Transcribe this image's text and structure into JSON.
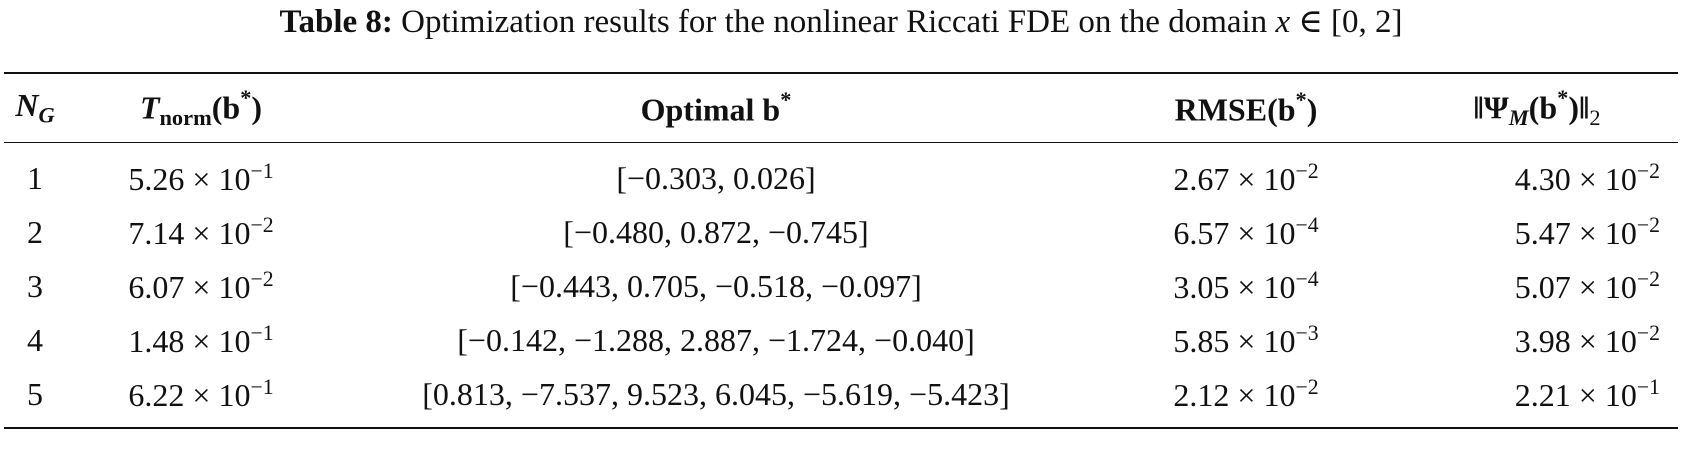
{
  "caption": {
    "label": "Table 8:",
    "text": [
      {
        "text": " Optimization results for the nonlinear Riccati FDE on the domain "
      },
      {
        "text": "x",
        "style": "i"
      },
      {
        "text": " ∈ [0, 2]"
      }
    ]
  },
  "table": {
    "header": [
      [
        {
          "text": "N",
          "style": "bi"
        },
        {
          "text": "G",
          "style": "sub-bi"
        }
      ],
      [
        {
          "text": "T",
          "style": "bi"
        },
        {
          "text": "norm",
          "style": "sub-b"
        },
        {
          "text": "(b",
          "style": "b"
        },
        {
          "text": "*",
          "style": "sup-b"
        },
        {
          "text": ")",
          "style": "b"
        }
      ],
      [
        {
          "text": "Optimal b",
          "style": "b"
        },
        {
          "text": "*",
          "style": "sup-b"
        }
      ],
      [
        {
          "text": "RMSE(b",
          "style": "b"
        },
        {
          "text": "*",
          "style": "sup-b"
        },
        {
          "text": ")",
          "style": "b"
        }
      ],
      [
        {
          "text": "‖Ψ",
          "style": "b"
        },
        {
          "text": "M",
          "style": "sub-bi"
        },
        {
          "text": "(b",
          "style": "b"
        },
        {
          "text": "*",
          "style": "sup-b"
        },
        {
          "text": ")‖",
          "style": "b"
        },
        {
          "text": "2",
          "style": "sub"
        }
      ]
    ],
    "rows": [
      [
        {
          "text": "1"
        },
        {
          "base": "5.26 × 10",
          "exp": "−1"
        },
        {
          "text": "[−0.303, 0.026]"
        },
        {
          "base": "2.67 × 10",
          "exp": "−2"
        },
        {
          "base": "4.30 × 10",
          "exp": "−2"
        }
      ],
      [
        {
          "text": "2"
        },
        {
          "base": "7.14 × 10",
          "exp": "−2"
        },
        {
          "text": "[−0.480, 0.872, −0.745]"
        },
        {
          "base": "6.57 × 10",
          "exp": "−4"
        },
        {
          "base": "5.47 × 10",
          "exp": "−2"
        }
      ],
      [
        {
          "text": "3"
        },
        {
          "base": "6.07 × 10",
          "exp": "−2"
        },
        {
          "text": "[−0.443, 0.705, −0.518, −0.097]"
        },
        {
          "base": "3.05 × 10",
          "exp": "−4"
        },
        {
          "base": "5.07 × 10",
          "exp": "−2"
        }
      ],
      [
        {
          "text": "4"
        },
        {
          "base": "1.48 × 10",
          "exp": "−1"
        },
        {
          "text": "[−0.142, −1.288, 2.887, −1.724, −0.040]"
        },
        {
          "base": "5.85 × 10",
          "exp": "−3"
        },
        {
          "base": "3.98 × 10",
          "exp": "−2"
        }
      ],
      [
        {
          "text": "5"
        },
        {
          "base": "6.22 × 10",
          "exp": "−1"
        },
        {
          "text": "[0.813, −7.537, 9.523, 6.045, −5.619, −5.423]"
        },
        {
          "base": "2.12 × 10",
          "exp": "−2"
        },
        {
          "base": "2.21 × 10",
          "exp": "−1"
        }
      ]
    ]
  }
}
